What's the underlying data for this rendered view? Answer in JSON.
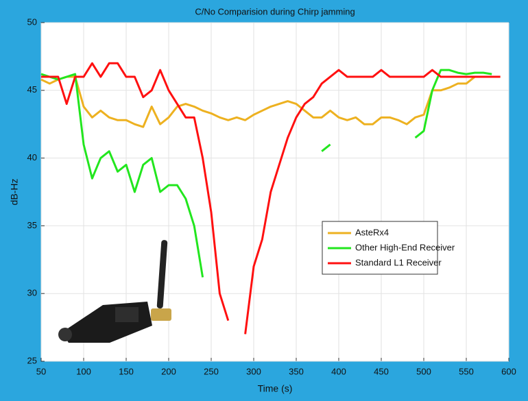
{
  "chart_data": {
    "type": "line",
    "title": "C/No Comparision during Chirp jamming",
    "x_label": "Time (s)",
    "y_label": "dB-Hz",
    "x": [
      50,
      60,
      70,
      80,
      90,
      100,
      110,
      120,
      130,
      140,
      150,
      160,
      170,
      180,
      190,
      200,
      210,
      220,
      230,
      240,
      250,
      260,
      270,
      280,
      290,
      300,
      310,
      320,
      330,
      340,
      350,
      360,
      370,
      380,
      390,
      400,
      410,
      420,
      430,
      440,
      450,
      460,
      470,
      480,
      490,
      500,
      510,
      520,
      530,
      540,
      550,
      560,
      570,
      580,
      590
    ],
    "series": [
      {
        "name": "AsteRx4",
        "color": "#edb120",
        "values": [
          45.8,
          45.5,
          45.8,
          46,
          46,
          43.8,
          43,
          43.5,
          43,
          42.8,
          42.8,
          42.5,
          42.3,
          43.8,
          42.5,
          43,
          43.8,
          44,
          43.8,
          43.5,
          43.3,
          43,
          42.8,
          43,
          42.8,
          43.2,
          43.5,
          43.8,
          44,
          44.2,
          44,
          43.5,
          43,
          43,
          43.5,
          43,
          42.8,
          43,
          42.5,
          42.5,
          43,
          43,
          42.8,
          42.5,
          43,
          43.2,
          45,
          45,
          45.2,
          45.5,
          45.5,
          46,
          46,
          46,
          46
        ]
      },
      {
        "name": "Other High-End Receiver",
        "color": "#22e61e",
        "values": [
          46.2,
          46,
          45.8,
          46,
          46.2,
          41,
          38.5,
          40,
          40.5,
          39,
          39.5,
          37.5,
          39.5,
          40,
          37.5,
          38,
          38,
          37,
          35,
          31.2,
          null,
          null,
          null,
          null,
          null,
          null,
          null,
          null,
          null,
          null,
          null,
          null,
          null,
          40.5,
          41,
          null,
          null,
          null,
          null,
          null,
          null,
          null,
          null,
          null,
          41.5,
          42,
          45,
          46.5,
          46.5,
          46.3,
          46.2,
          46.3,
          46.3,
          46.2,
          null
        ]
      },
      {
        "name": "Standard L1 Receiver",
        "color": "#ff1010",
        "values": [
          46,
          46,
          46,
          44,
          46,
          46,
          47,
          46,
          47,
          47,
          46,
          46,
          44.5,
          45,
          46.5,
          45,
          44,
          43,
          43,
          40,
          36,
          30,
          28,
          null,
          27,
          32,
          34,
          37.5,
          39.5,
          41.5,
          43,
          44,
          44.5,
          45.5,
          46,
          46.5,
          46,
          46,
          46,
          46,
          46.5,
          46,
          46,
          46,
          46,
          46,
          46.5,
          46,
          46,
          46,
          46,
          46,
          46,
          46,
          46
        ]
      }
    ],
    "xlim": [
      50,
      600
    ],
    "xticks": [
      50,
      100,
      150,
      200,
      250,
      300,
      350,
      400,
      450,
      500,
      550,
      600
    ],
    "ylim": [
      25,
      50
    ],
    "yticks": [
      25,
      30,
      35,
      40,
      45,
      50
    ],
    "grid": true,
    "legend": "center-right"
  }
}
